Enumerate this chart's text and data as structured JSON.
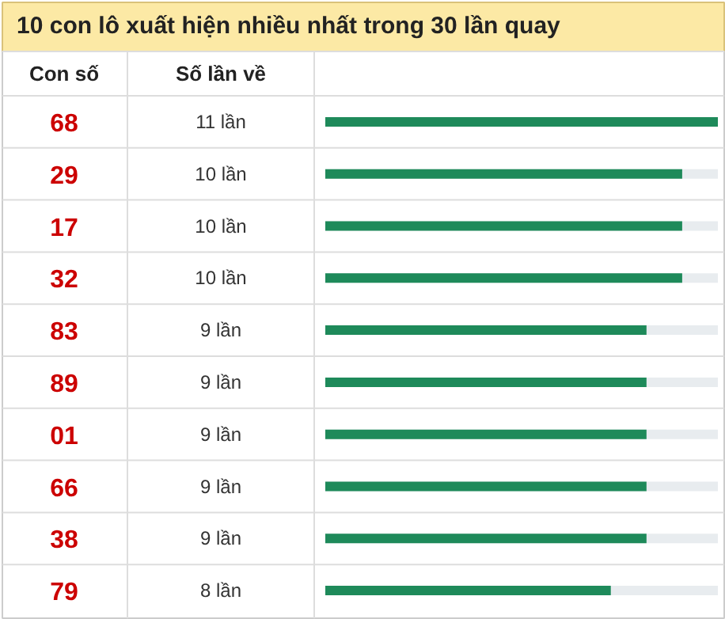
{
  "chart_data": {
    "type": "bar",
    "orientation": "horizontal",
    "title": "10 con lô xuất hiện nhiều nhất trong 30 lần quay",
    "ylabel": "Con số",
    "xlabel": "Số lần về",
    "categories": [
      "68",
      "29",
      "17",
      "32",
      "83",
      "89",
      "01",
      "66",
      "38",
      "79"
    ],
    "values": [
      11,
      10,
      10,
      10,
      9,
      9,
      9,
      9,
      9,
      8
    ],
    "value_labels": [
      "11 lần",
      "10 lần",
      "10 lần",
      "10 lần",
      "9 lần",
      "9 lần",
      "9 lần",
      "9 lần",
      "9 lần",
      "8 lần"
    ],
    "color": "#1e8a5a",
    "xlim": [
      0,
      11
    ],
    "grid": false
  }
}
